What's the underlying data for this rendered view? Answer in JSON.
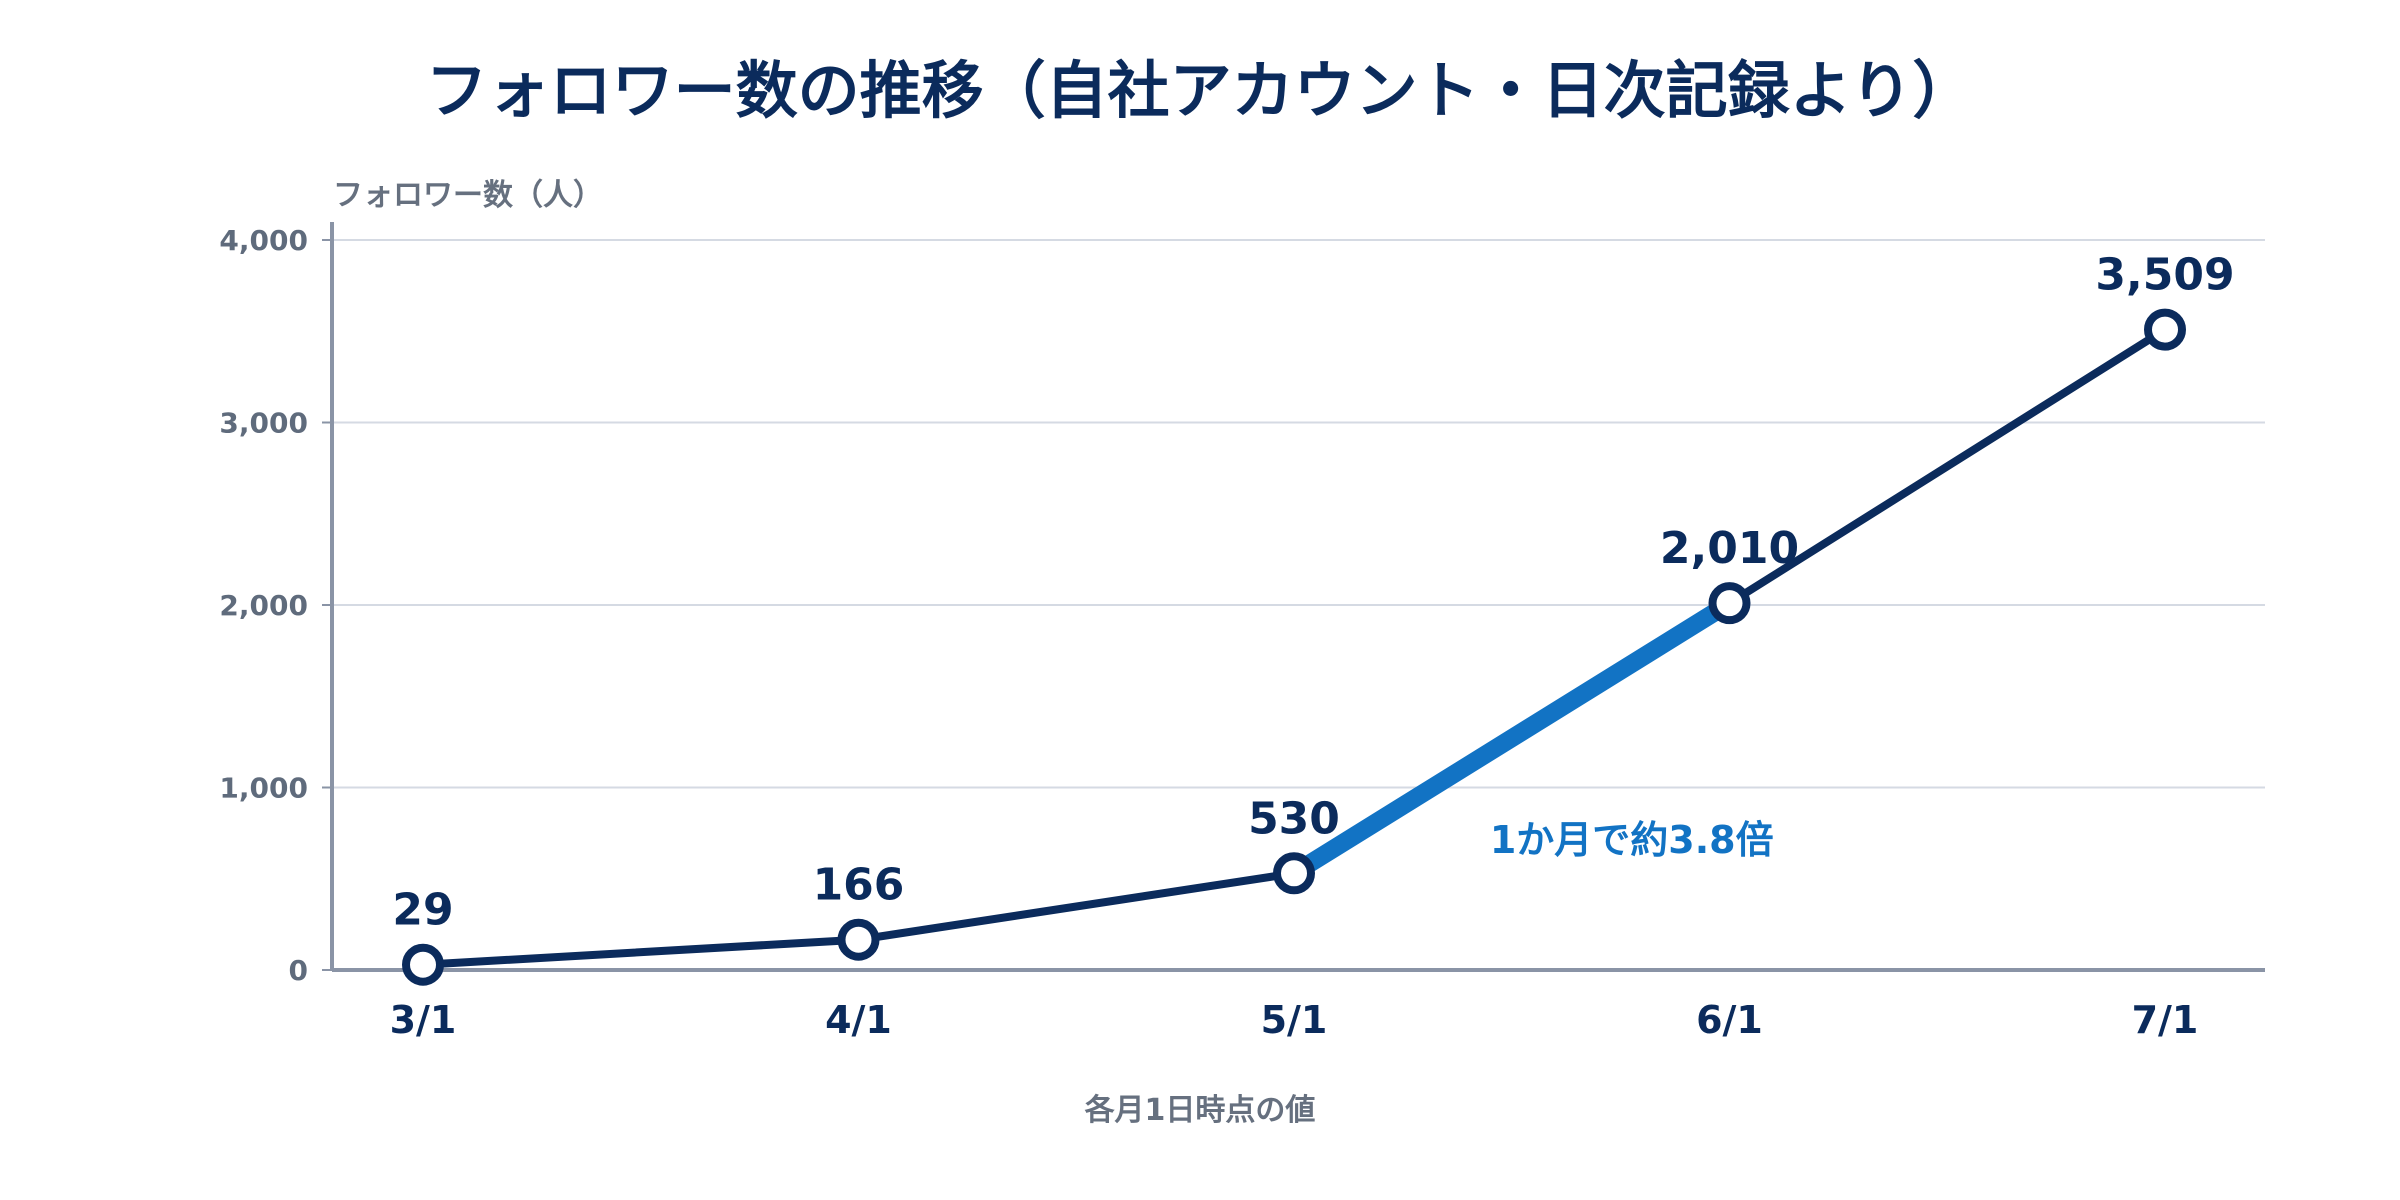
{
  "chart_data": {
    "type": "line",
    "title": "フォロワー数の推移（自社アカウント・日次記録より）",
    "ylabel": "フォロワー数（人）",
    "xlabel": "各月1日時点の値",
    "categories": [
      "3/1",
      "4/1",
      "5/1",
      "6/1",
      "7/1"
    ],
    "series": [
      {
        "values": [
          29,
          166,
          530,
          2010,
          3509
        ],
        "data_labels": [
          "29",
          "166",
          "530",
          "2,010",
          "3,509"
        ]
      }
    ],
    "ylim": [
      0,
      4000
    ],
    "yticks": [
      0,
      1000,
      2000,
      3000,
      4000
    ],
    "ytick_labels": [
      "0",
      "1,000",
      "2,000",
      "3,000",
      "4,000"
    ],
    "grid": true,
    "highlight": {
      "from_category": "5/1",
      "to_category": "6/1",
      "text": "1か月で約3.8倍"
    },
    "colors": {
      "line": "#0b2b5c",
      "highlight": "#1273c4",
      "grid": "#d5dae3",
      "axis": "#8a94a6",
      "marker_fill": "#ffffff"
    }
  }
}
